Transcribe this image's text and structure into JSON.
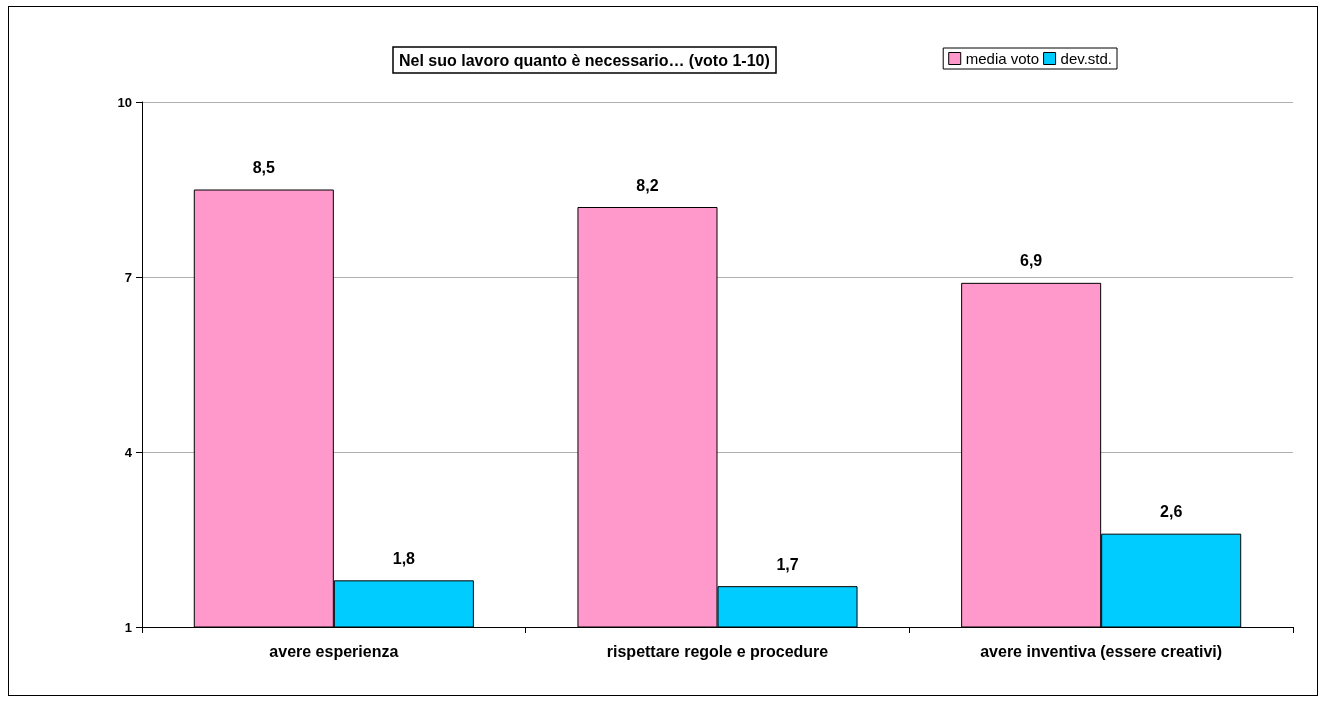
{
  "chart_data": {
    "type": "bar",
    "title": "Nel suo lavoro quanto è necessario… (voto 1-10)",
    "categories": [
      "avere esperienza",
      "rispettare regole e procedure",
      "avere inventiva (essere creativi)"
    ],
    "series": [
      {
        "name": "media voto",
        "color": "#ff99cc",
        "values": [
          8.5,
          8.2,
          6.9
        ],
        "value_labels": [
          "8,5",
          "8,2",
          "6,9"
        ]
      },
      {
        "name": "dev.std.",
        "color": "#00ccff",
        "values": [
          1.8,
          1.7,
          2.6
        ],
        "value_labels": [
          "1,8",
          "1,7",
          "2,6"
        ]
      }
    ],
    "ylim": [
      1,
      10
    ],
    "yticks": [
      1,
      4,
      7,
      10
    ],
    "grid": "y",
    "legend": "top right"
  }
}
